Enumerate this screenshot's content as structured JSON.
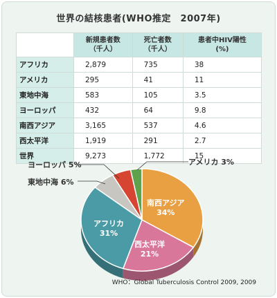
{
  "header": {
    "title": "世界の結核患者(WHO推定　2007年)"
  },
  "table": {
    "columns": [
      "新規患者数\n（千人）",
      "死亡者数\n（千人）",
      "患者中HIV陽性\n(%)"
    ],
    "rows": [
      {
        "region": "アフリカ",
        "new_cases": "2,879",
        "deaths": "735",
        "hiv": "38"
      },
      {
        "region": "アメリカ",
        "new_cases": "295",
        "deaths": "41",
        "hiv": "11"
      },
      {
        "region": "東地中海",
        "new_cases": "583",
        "deaths": "105",
        "hiv": "3.5"
      },
      {
        "region": "ヨーロッパ",
        "new_cases": "432",
        "deaths": "64",
        "hiv": "9.8"
      },
      {
        "region": "南西アジア",
        "new_cases": "3,165",
        "deaths": "537",
        "hiv": "4.6"
      },
      {
        "region": "西太平洋",
        "new_cases": "1,919",
        "deaths": "291",
        "hiv": "2.7"
      },
      {
        "region": "世界",
        "new_cases": "9,273",
        "deaths": "1,772",
        "hiv": "15"
      }
    ]
  },
  "chart_data": {
    "type": "pie",
    "slices": [
      {
        "label": "南西アジア",
        "value": 34,
        "display": "34%",
        "color": "#e8a043"
      },
      {
        "label": "西太平洋",
        "value": 21,
        "display": "21%",
        "color": "#d9779a"
      },
      {
        "label": "アフリカ",
        "value": 31,
        "display": "31%",
        "color": "#4a9ba6"
      },
      {
        "label": "東地中海",
        "value": 6,
        "display": "6%",
        "color": "#c8c6c0"
      },
      {
        "label": "ヨーロッパ",
        "value": 5,
        "display": "5%",
        "color": "#d64531"
      },
      {
        "label": "アメリカ",
        "value": 3,
        "display": "3%",
        "color": "#5ea34c"
      }
    ]
  },
  "labels": {
    "south_asia": "南西アジア",
    "south_asia_pct": "34%",
    "west_pacific": "西太平洋",
    "west_pacific_pct": "21%",
    "africa": "アフリカ",
    "africa_pct": "31%",
    "east_med": "東地中海 6%",
    "europe": "ヨーロッパ 5%",
    "america": "アメリカ 3%"
  },
  "footer": {
    "source": "WHO：Global Tuberculosis Control 2009, 2009"
  }
}
